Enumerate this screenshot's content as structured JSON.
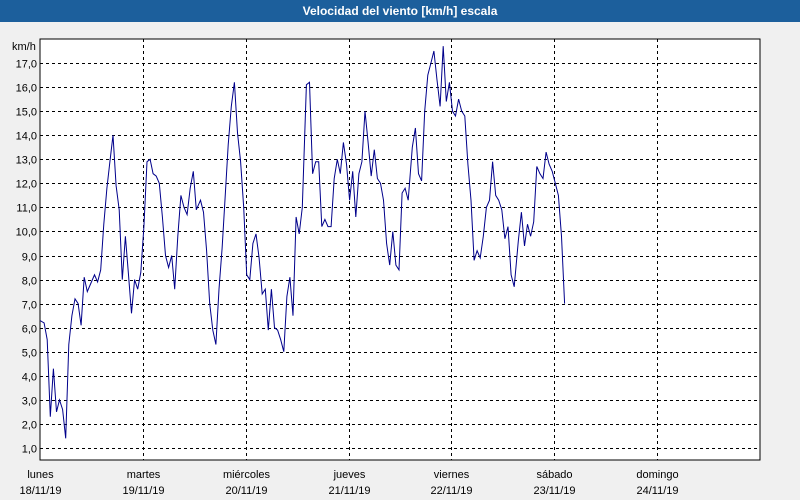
{
  "title": "Velocidad del viento [km/h] escala",
  "chart_data": {
    "type": "line",
    "title": "Velocidad del viento [km/h] escala",
    "ylabel": "km/h",
    "xlabel": "",
    "ylim": [
      0.5,
      18.0
    ],
    "xlim": [
      0,
      7
    ],
    "grid": true,
    "y_ticks": [
      "1,0",
      "2,0",
      "3,0",
      "4,0",
      "5,0",
      "6,0",
      "7,0",
      "8,0",
      "9,0",
      "10,0",
      "11,0",
      "12,0",
      "13,0",
      "14,0",
      "15,0",
      "16,0",
      "17,0"
    ],
    "x_ticks": [
      {
        "day": "lunes",
        "date": "18/11/19"
      },
      {
        "day": "martes",
        "date": "19/11/19"
      },
      {
        "day": "miércoles",
        "date": "20/11/19"
      },
      {
        "day": "jueves",
        "date": "21/11/19"
      },
      {
        "day": "viernes",
        "date": "22/11/19"
      },
      {
        "day": "sábado",
        "date": "23/11/19"
      },
      {
        "day": "domingo",
        "date": "24/11/19"
      }
    ],
    "series": [
      {
        "color": "#00008b",
        "points": [
          [
            0.0,
            6.3
          ],
          [
            0.04,
            6.2
          ],
          [
            0.07,
            5.5
          ],
          [
            0.1,
            2.3
          ],
          [
            0.13,
            4.3
          ],
          [
            0.16,
            2.5
          ],
          [
            0.19,
            3.0
          ],
          [
            0.22,
            2.6
          ],
          [
            0.25,
            1.4
          ],
          [
            0.28,
            5.3
          ],
          [
            0.31,
            6.5
          ],
          [
            0.34,
            7.2
          ],
          [
            0.37,
            7.0
          ],
          [
            0.4,
            6.1
          ],
          [
            0.43,
            8.1
          ],
          [
            0.46,
            7.5
          ],
          [
            0.5,
            7.9
          ],
          [
            0.53,
            8.2
          ],
          [
            0.56,
            7.9
          ],
          [
            0.59,
            8.4
          ],
          [
            0.62,
            10.3
          ],
          [
            0.65,
            11.8
          ],
          [
            0.68,
            12.9
          ],
          [
            0.71,
            14.0
          ],
          [
            0.74,
            11.9
          ],
          [
            0.77,
            10.9
          ],
          [
            0.8,
            8.0
          ],
          [
            0.83,
            9.8
          ],
          [
            0.86,
            8.2
          ],
          [
            0.89,
            6.6
          ],
          [
            0.92,
            8.0
          ],
          [
            0.95,
            7.6
          ],
          [
            0.98,
            8.3
          ],
          [
            1.01,
            10.2
          ],
          [
            1.04,
            12.9
          ],
          [
            1.07,
            13.0
          ],
          [
            1.1,
            12.4
          ],
          [
            1.13,
            12.3
          ],
          [
            1.16,
            12.0
          ],
          [
            1.19,
            10.6
          ],
          [
            1.22,
            9.0
          ],
          [
            1.25,
            8.5
          ],
          [
            1.28,
            9.0
          ],
          [
            1.31,
            7.6
          ],
          [
            1.34,
            9.8
          ],
          [
            1.37,
            11.5
          ],
          [
            1.4,
            11.0
          ],
          [
            1.43,
            10.7
          ],
          [
            1.46,
            11.8
          ],
          [
            1.49,
            12.5
          ],
          [
            1.52,
            10.9
          ],
          [
            1.56,
            11.3
          ],
          [
            1.59,
            10.8
          ],
          [
            1.62,
            9.2
          ],
          [
            1.65,
            7.0
          ],
          [
            1.68,
            5.9
          ],
          [
            1.71,
            5.3
          ],
          [
            1.74,
            7.6
          ],
          [
            1.77,
            9.3
          ],
          [
            1.8,
            11.4
          ],
          [
            1.83,
            13.6
          ],
          [
            1.86,
            15.2
          ],
          [
            1.89,
            16.2
          ],
          [
            1.92,
            14.1
          ],
          [
            1.95,
            12.9
          ],
          [
            1.98,
            11.0
          ],
          [
            2.01,
            8.2
          ],
          [
            2.04,
            8.0
          ],
          [
            2.07,
            9.5
          ],
          [
            2.1,
            9.9
          ],
          [
            2.13,
            8.9
          ],
          [
            2.16,
            7.4
          ],
          [
            2.19,
            7.6
          ],
          [
            2.22,
            5.9
          ],
          [
            2.25,
            7.6
          ],
          [
            2.28,
            6.0
          ],
          [
            2.31,
            5.9
          ],
          [
            2.34,
            5.5
          ],
          [
            2.37,
            5.0
          ],
          [
            2.4,
            7.3
          ],
          [
            2.43,
            8.1
          ],
          [
            2.46,
            6.5
          ],
          [
            2.49,
            10.6
          ],
          [
            2.52,
            9.9
          ],
          [
            2.55,
            11.0
          ],
          [
            2.59,
            16.1
          ],
          [
            2.62,
            16.2
          ],
          [
            2.65,
            12.4
          ],
          [
            2.68,
            12.9
          ],
          [
            2.71,
            12.9
          ],
          [
            2.74,
            10.2
          ],
          [
            2.77,
            10.5
          ],
          [
            2.8,
            10.2
          ],
          [
            2.83,
            10.2
          ],
          [
            2.86,
            12.2
          ],
          [
            2.89,
            13.0
          ],
          [
            2.92,
            12.4
          ],
          [
            2.95,
            13.7
          ],
          [
            2.98,
            12.8
          ],
          [
            3.01,
            11.3
          ],
          [
            3.04,
            12.5
          ],
          [
            3.07,
            10.6
          ],
          [
            3.1,
            12.4
          ],
          [
            3.13,
            12.9
          ],
          [
            3.16,
            15.0
          ],
          [
            3.19,
            13.7
          ],
          [
            3.22,
            12.3
          ],
          [
            3.25,
            13.4
          ],
          [
            3.28,
            12.2
          ],
          [
            3.31,
            12.0
          ],
          [
            3.34,
            11.3
          ],
          [
            3.37,
            9.5
          ],
          [
            3.4,
            8.6
          ],
          [
            3.43,
            10.0
          ],
          [
            3.46,
            8.6
          ],
          [
            3.49,
            8.4
          ],
          [
            3.52,
            11.6
          ],
          [
            3.55,
            11.8
          ],
          [
            3.58,
            11.3
          ],
          [
            3.62,
            13.5
          ],
          [
            3.65,
            14.3
          ],
          [
            3.68,
            12.4
          ],
          [
            3.71,
            12.1
          ],
          [
            3.74,
            15.0
          ],
          [
            3.77,
            16.5
          ],
          [
            3.8,
            17.0
          ],
          [
            3.83,
            17.5
          ],
          [
            3.86,
            16.3
          ],
          [
            3.89,
            15.2
          ],
          [
            3.92,
            17.7
          ],
          [
            3.95,
            15.4
          ],
          [
            3.98,
            16.2
          ],
          [
            4.01,
            15.0
          ],
          [
            4.04,
            14.8
          ],
          [
            4.07,
            15.5
          ],
          [
            4.1,
            15.0
          ],
          [
            4.13,
            14.8
          ],
          [
            4.16,
            12.8
          ],
          [
            4.19,
            11.3
          ],
          [
            4.22,
            8.8
          ],
          [
            4.25,
            9.2
          ],
          [
            4.28,
            8.9
          ],
          [
            4.31,
            9.8
          ],
          [
            4.34,
            11.0
          ],
          [
            4.37,
            11.3
          ],
          [
            4.4,
            12.9
          ],
          [
            4.43,
            11.5
          ],
          [
            4.46,
            11.3
          ],
          [
            4.49,
            10.9
          ],
          [
            4.52,
            9.7
          ],
          [
            4.55,
            10.2
          ],
          [
            4.58,
            8.2
          ],
          [
            4.61,
            7.7
          ],
          [
            4.65,
            9.6
          ],
          [
            4.68,
            10.8
          ],
          [
            4.71,
            9.4
          ],
          [
            4.74,
            10.3
          ],
          [
            4.77,
            9.8
          ],
          [
            4.8,
            10.4
          ],
          [
            4.83,
            12.7
          ],
          [
            4.86,
            12.4
          ],
          [
            4.89,
            12.2
          ],
          [
            4.92,
            13.3
          ],
          [
            4.95,
            12.8
          ],
          [
            4.98,
            12.5
          ],
          [
            5.01,
            12.0
          ],
          [
            5.04,
            11.5
          ],
          [
            5.07,
            9.8
          ],
          [
            5.1,
            7.0
          ]
        ]
      }
    ]
  }
}
